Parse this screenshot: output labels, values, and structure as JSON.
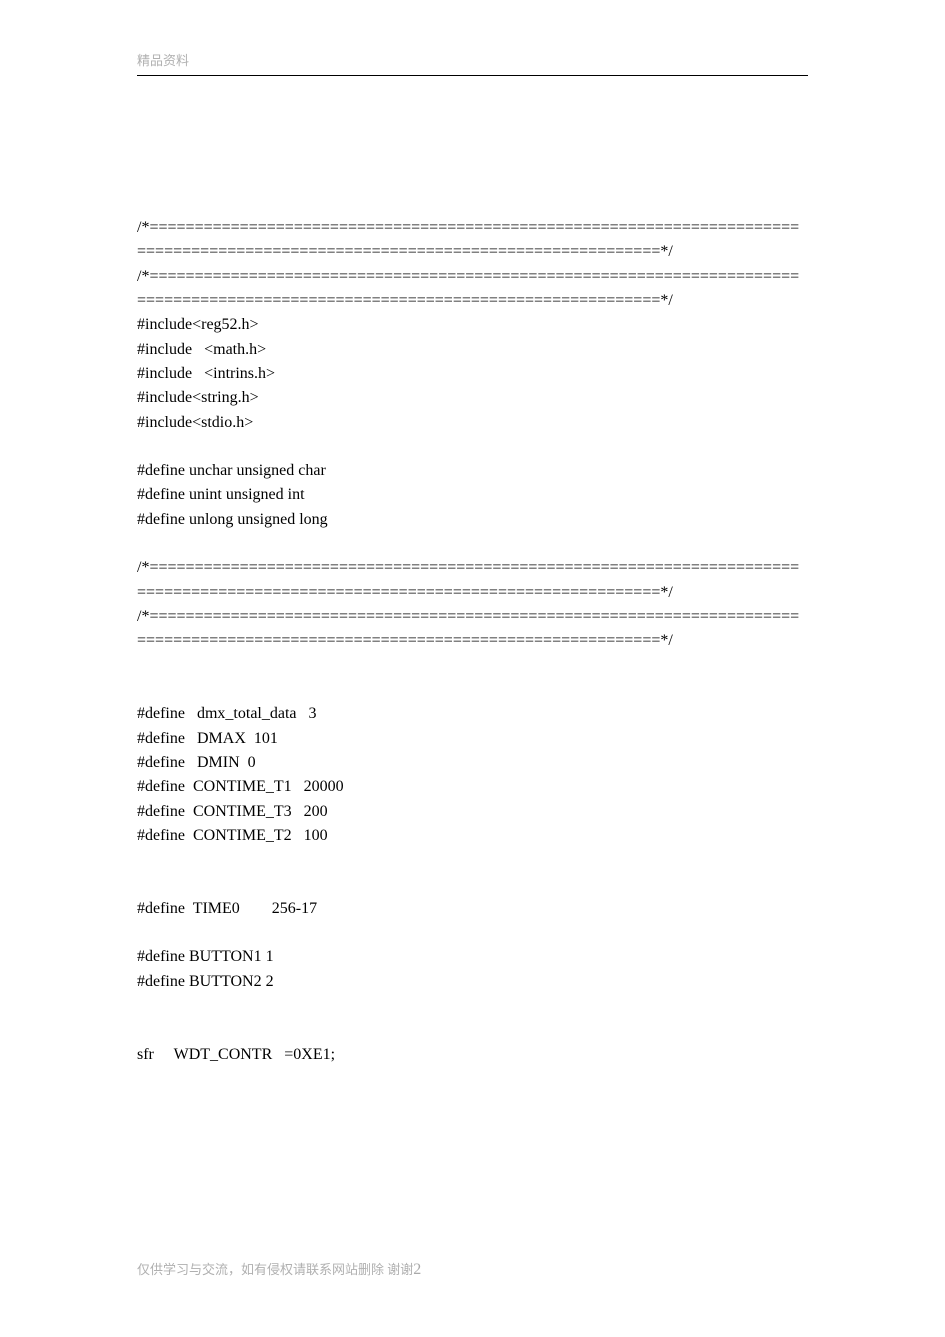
{
  "header": {
    "label": "精品资料"
  },
  "code": {
    "lines": [
      "/*==================================================================================================================================*/",
      "/*==================================================================================================================================*/",
      "#include<reg52.h>",
      "#include   <math.h>",
      "#include   <intrins.h>",
      "#include<string.h>",
      "#include<stdio.h>",
      "",
      "#define unchar unsigned char",
      "#define unint unsigned int",
      "#define unlong unsigned long",
      "",
      "/*==================================================================================================================================*/",
      "/*==================================================================================================================================*/",
      "",
      "",
      "#define   dmx_total_data   3",
      "#define   DMAX  101",
      "#define   DMIN  0",
      "#define  CONTIME_T1   20000",
      "#define  CONTIME_T3   200",
      "#define  CONTIME_T2   100",
      "",
      "",
      "#define  TIME0        256-17",
      "",
      "#define BUTTON1 1",
      "#define BUTTON2 2",
      "",
      "",
      "sfr     WDT_CONTR   =0XE1;"
    ]
  },
  "footer": {
    "text": "仅供学习与交流，如有侵权请联系网站删除 谢谢",
    "page": "2"
  },
  "colors": {
    "background": "#ffffff",
    "text": "#000000",
    "muted": "#b0b0b0",
    "rule": "#000000"
  }
}
